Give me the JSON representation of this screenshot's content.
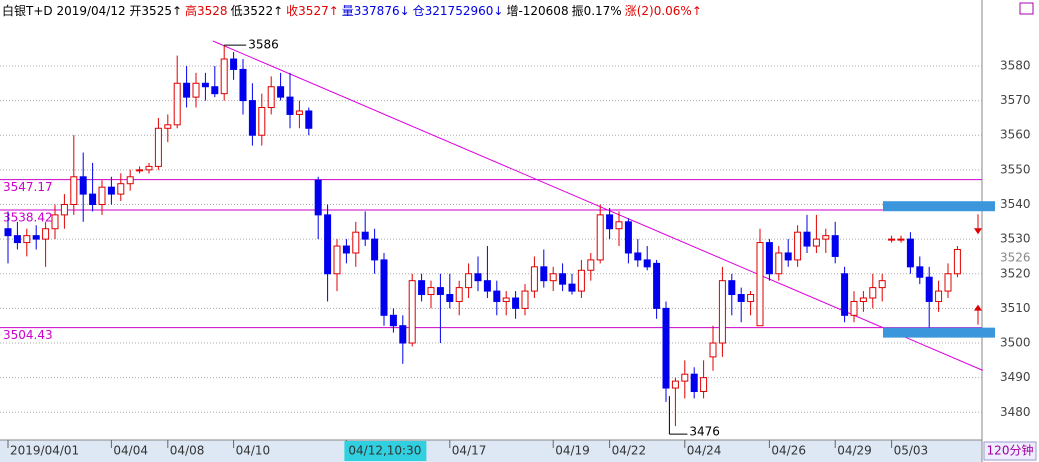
{
  "chart_data": {
    "type": "candlestick",
    "header": [
      {
        "text": "白银T+D 2019/04/12 开3525↑",
        "color": "#000000"
      },
      {
        "text": "高3528",
        "color": "#e00000"
      },
      {
        "text": "低3522↑",
        "color": "#000000"
      },
      {
        "text": "收3527↑",
        "color": "#e00000"
      },
      {
        "text": "量337876↓",
        "color": "#0000e0"
      },
      {
        "text": "仓321752960↓",
        "color": "#0000e0"
      },
      {
        "text": "增-120608",
        "color": "#000000"
      },
      {
        "text": "振0.17%",
        "color": "#000000"
      },
      {
        "text": "涨(2)0.06%↑",
        "color": "#e00000"
      }
    ],
    "period": "120分钟",
    "cursor_label": "04/12,10:30",
    "categories": [
      "2019/04/01",
      null,
      null,
      null,
      null,
      null,
      null,
      null,
      null,
      null,
      null,
      "04/04",
      null,
      null,
      null,
      null,
      null,
      "04/08",
      null,
      null,
      null,
      null,
      null,
      null,
      "04/10",
      null,
      null,
      null,
      null,
      null,
      null,
      null,
      null,
      null,
      null,
      null,
      "04/12,10:30",
      null,
      null,
      null,
      null,
      null,
      null,
      null,
      null,
      null,
      null,
      "04/17",
      null,
      null,
      null,
      null,
      null,
      null,
      null,
      null,
      null,
      null,
      "04/19",
      null,
      null,
      null,
      null,
      null,
      "04/22",
      null,
      null,
      null,
      null,
      null,
      null,
      null,
      "04/24",
      null,
      null,
      null,
      null,
      null,
      null,
      null,
      null,
      "04/26",
      null,
      null,
      null,
      null,
      null,
      null,
      "04/29",
      null,
      null,
      null,
      null,
      null,
      "05/03",
      null,
      null,
      null,
      null,
      null,
      null,
      null
    ],
    "ohlc": [
      [
        3533,
        3538,
        3523,
        3531
      ],
      [
        3531,
        3535,
        3527,
        3529
      ],
      [
        3529,
        3533,
        3525,
        3531
      ],
      [
        3531,
        3534,
        3527,
        3530
      ],
      [
        3530,
        3535,
        3522,
        3533
      ],
      [
        3533,
        3540,
        3530,
        3537
      ],
      [
        3537,
        3543,
        3533,
        3540
      ],
      [
        3540,
        3560,
        3537,
        3548
      ],
      [
        3548,
        3555,
        3535,
        3543
      ],
      [
        3543,
        3552,
        3538,
        3540
      ],
      [
        3540,
        3547,
        3537,
        3545
      ],
      [
        3545,
        3548,
        3540,
        3543
      ],
      [
        3543,
        3549,
        3541,
        3546
      ],
      [
        3546,
        3550,
        3544,
        3548
      ],
      [
        3550,
        3551,
        3549,
        3550
      ],
      [
        3550,
        3552,
        3549,
        3551
      ],
      [
        3551,
        3565,
        3550,
        3562
      ],
      [
        3562,
        3566,
        3558,
        3563
      ],
      [
        3563,
        3583,
        3562,
        3575
      ],
      [
        3575,
        3580,
        3568,
        3571
      ],
      [
        3571,
        3578,
        3568,
        3575
      ],
      [
        3575,
        3578,
        3570,
        3574
      ],
      [
        3574,
        3580,
        3571,
        3572
      ],
      [
        3572,
        3586,
        3570,
        3582
      ],
      [
        3582,
        3584,
        3576,
        3579
      ],
      [
        3579,
        3582,
        3566,
        3570
      ],
      [
        3570,
        3575,
        3557,
        3560
      ],
      [
        3560,
        3572,
        3557,
        3568
      ],
      [
        3568,
        3577,
        3566,
        3574
      ],
      [
        3574,
        3578,
        3570,
        3571
      ],
      [
        3571,
        3578,
        3562,
        3566
      ],
      [
        3566,
        3570,
        3562,
        3567
      ],
      [
        3567,
        3568,
        3560,
        3562
      ],
      [
        3547,
        3548,
        3530,
        3537
      ],
      [
        3537,
        3540,
        3512,
        3520
      ],
      [
        3520,
        3530,
        3515,
        3528
      ],
      [
        3528,
        3530,
        3523,
        3526
      ],
      [
        3526,
        3535,
        3522,
        3532
      ],
      [
        3532,
        3538,
        3528,
        3530
      ],
      [
        3530,
        3533,
        3520,
        3524
      ],
      [
        3524,
        3526,
        3505,
        3508
      ],
      [
        3508,
        3510,
        3503,
        3505
      ],
      [
        3505,
        3508,
        3494,
        3500
      ],
      [
        3500,
        3520,
        3499,
        3518
      ],
      [
        3518,
        3520,
        3512,
        3514
      ],
      [
        3514,
        3518,
        3510,
        3516
      ],
      [
        3516,
        3520,
        3500,
        3514
      ],
      [
        3514,
        3520,
        3510,
        3512
      ],
      [
        3512,
        3518,
        3508,
        3516
      ],
      [
        3516,
        3523,
        3513,
        3520
      ],
      [
        3520,
        3525,
        3515,
        3518
      ],
      [
        3518,
        3528,
        3513,
        3515
      ],
      [
        3515,
        3518,
        3508,
        3512
      ],
      [
        3512,
        3515,
        3508,
        3513
      ],
      [
        3513,
        3515,
        3507,
        3510
      ],
      [
        3510,
        3517,
        3508,
        3515
      ],
      [
        3515,
        3525,
        3513,
        3522
      ],
      [
        3522,
        3527,
        3516,
        3518
      ],
      [
        3518,
        3522,
        3515,
        3520
      ],
      [
        3520,
        3523,
        3515,
        3517
      ],
      [
        3517,
        3520,
        3514,
        3515
      ],
      [
        3515,
        3524,
        3513,
        3521
      ],
      [
        3521,
        3526,
        3518,
        3524
      ],
      [
        3524,
        3540,
        3523,
        3537
      ],
      [
        3537,
        3539,
        3530,
        3533
      ],
      [
        3533,
        3538,
        3528,
        3535
      ],
      [
        3535,
        3536,
        3523,
        3526
      ],
      [
        3526,
        3530,
        3522,
        3524
      ],
      [
        3524,
        3528,
        3521,
        3522
      ],
      [
        3523,
        3524,
        3507,
        3510
      ],
      [
        3510,
        3512,
        3483,
        3487
      ],
      [
        3487,
        3490,
        3476,
        3489
      ],
      [
        3489,
        3495,
        3484,
        3491
      ],
      [
        3491,
        3493,
        3484,
        3486
      ],
      [
        3486,
        3495,
        3484,
        3490
      ],
      [
        3496,
        3505,
        3492,
        3500
      ],
      [
        3500,
        3522,
        3496,
        3518
      ],
      [
        3518,
        3520,
        3508,
        3514
      ],
      [
        3514,
        3516,
        3506,
        3512
      ],
      [
        3512,
        3515,
        3508,
        3514
      ],
      [
        3505,
        3533,
        3505,
        3529
      ],
      [
        3529,
        3530,
        3518,
        3520
      ],
      [
        3520,
        3528,
        3518,
        3526
      ],
      [
        3526,
        3530,
        3522,
        3524
      ],
      [
        3524,
        3534,
        3522,
        3532
      ],
      [
        3532,
        3537,
        3526,
        3528
      ],
      [
        3528,
        3537,
        3526,
        3530
      ],
      [
        3530,
        3533,
        3526,
        3531
      ],
      [
        3531,
        3535,
        3523,
        3525
      ],
      [
        3520,
        3522,
        3506,
        3508
      ],
      [
        3508,
        3515,
        3506,
        3512
      ],
      [
        3512,
        3515,
        3509,
        3513
      ],
      [
        3513,
        3520,
        3510,
        3516
      ],
      [
        3516,
        3520,
        3512,
        3518
      ],
      [
        3530,
        3531,
        3529,
        3530
      ],
      [
        3530,
        3531,
        3529,
        3530
      ],
      [
        3530,
        3532,
        3520,
        3522
      ],
      [
        3522,
        3525,
        3517,
        3519
      ],
      [
        3519,
        3522,
        3504,
        3512
      ],
      [
        3512,
        3518,
        3509,
        3515
      ],
      [
        3515,
        3523,
        3513,
        3520
      ],
      [
        3520,
        3528,
        3519,
        3527
      ]
    ],
    "up_color": "#e00000",
    "down_color": "#0000ee",
    "high_label_index": 23,
    "low_label_index": 71,
    "levels": [
      3547.17,
      3538.42,
      3504.43
    ],
    "level_color": "#cc00cc",
    "trendline": {
      "x": [
        21.8,
        103.7
      ],
      "y": [
        3587.2,
        3492.1
      ],
      "color": "#dd00dd"
    },
    "markers": [
      3539.5,
      3503
    ],
    "marker_color": "#3c96dc",
    "last_price": 3526,
    "ylim": [
      3472,
      3595
    ],
    "yticks": [
      3480,
      3490,
      3500,
      3510,
      3520,
      3530,
      3540,
      3550,
      3560,
      3570,
      3580
    ],
    "grid": true
  }
}
